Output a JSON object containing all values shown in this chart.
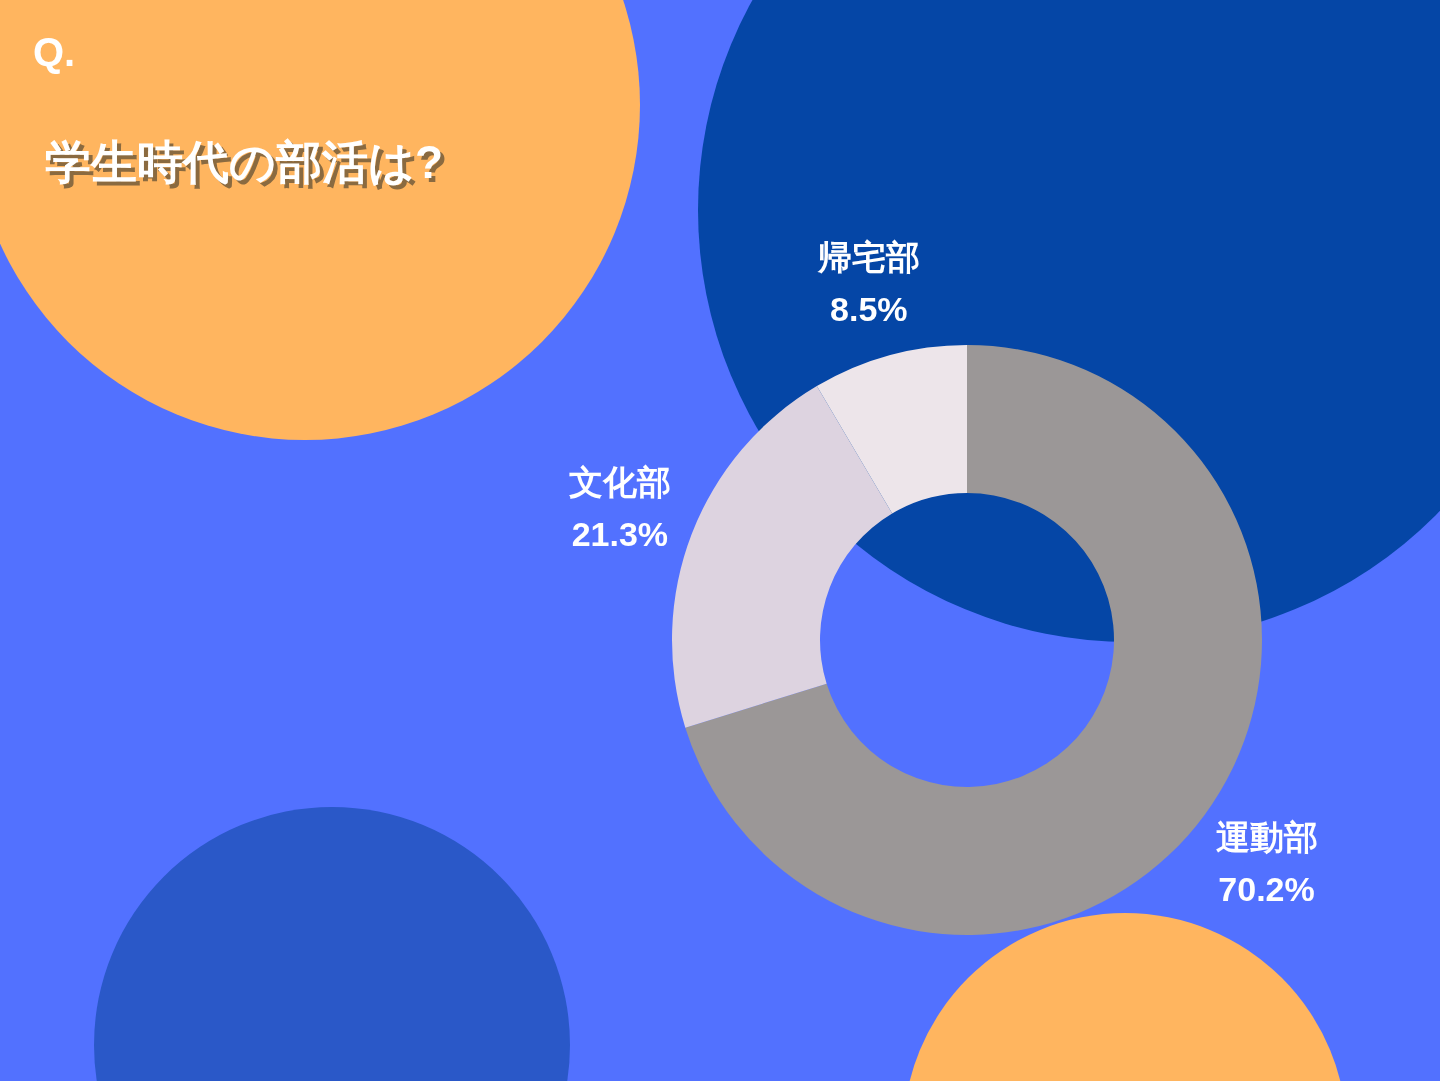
{
  "chart_data": {
    "type": "donut",
    "title": "学生時代の部活は?",
    "annotations": [
      "Q."
    ],
    "categories": [
      "運動部",
      "文化部",
      "帰宅部"
    ],
    "values": [
      70.2,
      21.3,
      8.5
    ],
    "value_labels": [
      "70.2%",
      "21.3%",
      "8.5%"
    ],
    "colors": [
      "#9b9797",
      "#ddd3e0",
      "#ede5ea"
    ]
  }
}
